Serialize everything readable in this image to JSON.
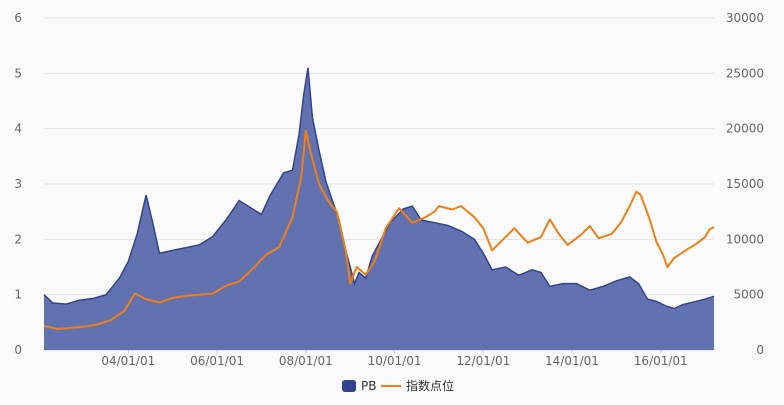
{
  "chart_data": {
    "type": "area+line",
    "title": "",
    "xlabel": "",
    "ylabel_left": "",
    "ylabel_right": "",
    "x_ticks": [
      "04/01/01",
      "06/01/01",
      "08/01/01",
      "10/01/01",
      "12/01/01",
      "14/01/01",
      "16/01/01"
    ],
    "x_tick_years": [
      2004,
      2006,
      2008,
      2010,
      2012,
      2014,
      2016
    ],
    "x_range": [
      2002.1,
      2017.2
    ],
    "y_left": {
      "min": 0,
      "max": 6,
      "ticks": [
        "0",
        "1",
        "2",
        "3",
        "4",
        "5",
        "6"
      ]
    },
    "y_right": {
      "min": 0,
      "max": 30000,
      "ticks": [
        "0",
        "5000",
        "10000",
        "15000",
        "20000",
        "25000",
        "30000"
      ]
    },
    "grid": true,
    "legend_position": "bottom-center",
    "series": [
      {
        "name": "PB",
        "type": "area",
        "axis": "left",
        "color": "#33438f",
        "fill": "#6272b0",
        "points": [
          [
            2002.1,
            1.0
          ],
          [
            2002.3,
            0.85
          ],
          [
            2002.6,
            0.83
          ],
          [
            2002.9,
            0.9
          ],
          [
            2003.2,
            0.93
          ],
          [
            2003.5,
            1.0
          ],
          [
            2003.8,
            1.3
          ],
          [
            2004.0,
            1.6
          ],
          [
            2004.2,
            2.1
          ],
          [
            2004.4,
            2.8
          ],
          [
            2004.55,
            2.3
          ],
          [
            2004.7,
            1.75
          ],
          [
            2005.0,
            1.8
          ],
          [
            2005.3,
            1.85
          ],
          [
            2005.6,
            1.9
          ],
          [
            2005.9,
            2.05
          ],
          [
            2006.2,
            2.35
          ],
          [
            2006.5,
            2.7
          ],
          [
            2006.8,
            2.55
          ],
          [
            2007.0,
            2.45
          ],
          [
            2007.2,
            2.8
          ],
          [
            2007.5,
            3.2
          ],
          [
            2007.7,
            3.25
          ],
          [
            2007.85,
            3.9
          ],
          [
            2007.95,
            4.6
          ],
          [
            2008.05,
            5.1
          ],
          [
            2008.15,
            4.2
          ],
          [
            2008.3,
            3.6
          ],
          [
            2008.45,
            3.05
          ],
          [
            2008.6,
            2.7
          ],
          [
            2008.75,
            2.35
          ],
          [
            2008.9,
            1.8
          ],
          [
            2009.0,
            1.5
          ],
          [
            2009.1,
            1.2
          ],
          [
            2009.2,
            1.4
          ],
          [
            2009.35,
            1.3
          ],
          [
            2009.5,
            1.7
          ],
          [
            2009.7,
            2.0
          ],
          [
            2009.9,
            2.3
          ],
          [
            2010.2,
            2.55
          ],
          [
            2010.4,
            2.6
          ],
          [
            2010.6,
            2.35
          ],
          [
            2010.9,
            2.3
          ],
          [
            2011.2,
            2.25
          ],
          [
            2011.5,
            2.15
          ],
          [
            2011.8,
            2.0
          ],
          [
            2012.0,
            1.75
          ],
          [
            2012.2,
            1.45
          ],
          [
            2012.5,
            1.5
          ],
          [
            2012.8,
            1.35
          ],
          [
            2013.1,
            1.45
          ],
          [
            2013.3,
            1.4
          ],
          [
            2013.5,
            1.15
          ],
          [
            2013.8,
            1.2
          ],
          [
            2014.1,
            1.2
          ],
          [
            2014.4,
            1.08
          ],
          [
            2014.7,
            1.15
          ],
          [
            2015.0,
            1.25
          ],
          [
            2015.3,
            1.32
          ],
          [
            2015.5,
            1.2
          ],
          [
            2015.7,
            0.92
          ],
          [
            2015.9,
            0.88
          ],
          [
            2016.1,
            0.8
          ],
          [
            2016.3,
            0.75
          ],
          [
            2016.5,
            0.82
          ],
          [
            2016.8,
            0.88
          ],
          [
            2017.0,
            0.92
          ],
          [
            2017.2,
            0.97
          ]
        ]
      },
      {
        "name": "指数点位",
        "type": "line",
        "axis": "right",
        "color": "#f07f16",
        "points": [
          [
            2002.1,
            2200
          ],
          [
            2002.4,
            1900
          ],
          [
            2002.7,
            2000
          ],
          [
            2003.0,
            2100
          ],
          [
            2003.3,
            2300
          ],
          [
            2003.6,
            2700
          ],
          [
            2003.9,
            3500
          ],
          [
            2004.15,
            5100
          ],
          [
            2004.4,
            4600
          ],
          [
            2004.7,
            4300
          ],
          [
            2005.0,
            4700
          ],
          [
            2005.3,
            4900
          ],
          [
            2005.6,
            5000
          ],
          [
            2005.9,
            5100
          ],
          [
            2006.2,
            5800
          ],
          [
            2006.5,
            6200
          ],
          [
            2006.8,
            7300
          ],
          [
            2007.1,
            8600
          ],
          [
            2007.4,
            9300
          ],
          [
            2007.7,
            12000
          ],
          [
            2007.9,
            15700
          ],
          [
            2008.0,
            19800
          ],
          [
            2008.1,
            18000
          ],
          [
            2008.3,
            15000
          ],
          [
            2008.5,
            13500
          ],
          [
            2008.7,
            12500
          ],
          [
            2008.9,
            9000
          ],
          [
            2009.0,
            6000
          ],
          [
            2009.15,
            7500
          ],
          [
            2009.35,
            6800
          ],
          [
            2009.55,
            8000
          ],
          [
            2009.8,
            11000
          ],
          [
            2010.1,
            12800
          ],
          [
            2010.4,
            11500
          ],
          [
            2010.7,
            12000
          ],
          [
            2010.9,
            12500
          ],
          [
            2011.0,
            13000
          ],
          [
            2011.3,
            12700
          ],
          [
            2011.5,
            13000
          ],
          [
            2011.8,
            12000
          ],
          [
            2012.0,
            11000
          ],
          [
            2012.2,
            9000
          ],
          [
            2012.5,
            10200
          ],
          [
            2012.7,
            11000
          ],
          [
            2013.0,
            9700
          ],
          [
            2013.3,
            10200
          ],
          [
            2013.5,
            11800
          ],
          [
            2013.7,
            10500
          ],
          [
            2013.9,
            9500
          ],
          [
            2014.2,
            10400
          ],
          [
            2014.4,
            11200
          ],
          [
            2014.6,
            10100
          ],
          [
            2014.9,
            10500
          ],
          [
            2015.1,
            11500
          ],
          [
            2015.3,
            13000
          ],
          [
            2015.45,
            14300
          ],
          [
            2015.55,
            14000
          ],
          [
            2015.75,
            11800
          ],
          [
            2015.9,
            9800
          ],
          [
            2016.05,
            8600
          ],
          [
            2016.15,
            7500
          ],
          [
            2016.3,
            8300
          ],
          [
            2016.6,
            9100
          ],
          [
            2016.8,
            9600
          ],
          [
            2017.0,
            10200
          ],
          [
            2017.1,
            10900
          ],
          [
            2017.2,
            11100
          ]
        ]
      }
    ]
  }
}
